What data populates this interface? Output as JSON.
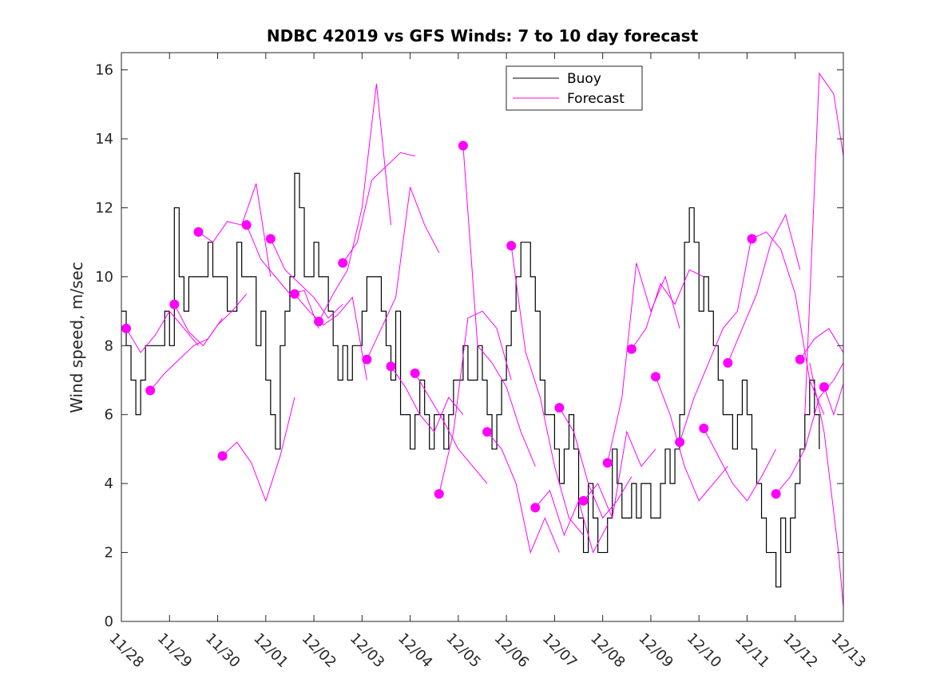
{
  "chart_data": {
    "type": "line",
    "title": "NDBC 42019 vs GFS Winds: 7 to 10 day forecast",
    "xlabel": "",
    "ylabel": "Wind speed, m/sec",
    "ylim": [
      0,
      16.5
    ],
    "xlim": [
      0,
      15
    ],
    "x_tick_labels": [
      "11/28",
      "11/29",
      "11/30",
      "12/01",
      "12/02",
      "12/03",
      "12/04",
      "12/05",
      "12/06",
      "12/07",
      "12/08",
      "12/09",
      "12/10",
      "12/11",
      "12/12",
      "12/13"
    ],
    "y_ticks": [
      0,
      2,
      4,
      6,
      8,
      10,
      12,
      14,
      16
    ],
    "y_tick_labels": [
      "0",
      "2",
      "4",
      "6",
      "8",
      "10",
      "12",
      "14",
      "16"
    ],
    "legend": {
      "location": "top-center",
      "entries": [
        "Buoy",
        "Forecast"
      ]
    },
    "colors": {
      "buoy": "#000000",
      "forecast": "#ff00ff"
    },
    "buoy": {
      "name": "Buoy",
      "x": [
        0,
        0.1,
        0.2,
        0.3,
        0.4,
        0.5,
        0.6,
        0.7,
        0.8,
        0.9,
        1.0,
        1.1,
        1.2,
        1.3,
        1.4,
        1.5,
        1.6,
        1.7,
        1.8,
        1.9,
        2.0,
        2.1,
        2.2,
        2.3,
        2.4,
        2.5,
        2.6,
        2.7,
        2.8,
        2.9,
        3.0,
        3.1,
        3.2,
        3.3,
        3.4,
        3.5,
        3.6,
        3.7,
        3.8,
        3.9,
        4.0,
        4.1,
        4.2,
        4.3,
        4.4,
        4.5,
        4.6,
        4.7,
        4.8,
        4.9,
        5.0,
        5.1,
        5.2,
        5.3,
        5.4,
        5.5,
        5.6,
        5.7,
        5.8,
        5.9,
        6.0,
        6.1,
        6.2,
        6.3,
        6.4,
        6.5,
        6.6,
        6.7,
        6.8,
        6.9,
        7.0,
        7.1,
        7.2,
        7.3,
        7.4,
        7.5,
        7.6,
        7.7,
        7.8,
        7.9,
        8.0,
        8.1,
        8.2,
        8.3,
        8.4,
        8.5,
        8.6,
        8.7,
        8.8,
        8.9,
        9.0,
        9.1,
        9.2,
        9.3,
        9.4,
        9.5,
        9.6,
        9.7,
        9.8,
        9.9,
        10.0,
        10.1,
        10.2,
        10.3,
        10.4,
        10.5,
        10.6,
        10.7,
        10.8,
        10.9,
        11.0,
        11.1,
        11.2,
        11.3,
        11.4,
        11.5,
        11.6,
        11.7,
        11.8,
        11.9,
        12.0,
        12.1,
        12.2,
        12.3,
        12.4,
        12.5,
        12.6,
        12.7,
        12.8,
        12.9,
        13.0,
        13.1,
        13.2,
        13.3,
        13.4,
        13.5,
        13.6,
        13.7,
        13.8,
        13.9,
        14.0,
        14.1,
        14.2,
        14.3,
        14.4,
        14.5
      ],
      "values": [
        9,
        8,
        7,
        6,
        7,
        8,
        8,
        8,
        8,
        9,
        8,
        12,
        10,
        9,
        10,
        10,
        10,
        10,
        11,
        10,
        10,
        10,
        9,
        9,
        11,
        10,
        10,
        10,
        8,
        9,
        7,
        6,
        5,
        8,
        9,
        10,
        13,
        12,
        10,
        10,
        11,
        10,
        10,
        9,
        8,
        7,
        8,
        7,
        8,
        8,
        9,
        10,
        10,
        10,
        9,
        8,
        7,
        9,
        6,
        6,
        5,
        6,
        7,
        6,
        5,
        6,
        6,
        5,
        6,
        7,
        7,
        8,
        7,
        7,
        8,
        7,
        6,
        5,
        6,
        7,
        8,
        9,
        10,
        11,
        11,
        10,
        9,
        7,
        6,
        6,
        5,
        4,
        5,
        6,
        5,
        3,
        2,
        4,
        3,
        2,
        2,
        3,
        5,
        4,
        3,
        3,
        4,
        3,
        4,
        4,
        3,
        3,
        4,
        5,
        4,
        5,
        6,
        11,
        12,
        11,
        9,
        10,
        9,
        8,
        7,
        6,
        6,
        5,
        6,
        7,
        6,
        5,
        4,
        3,
        2,
        2,
        1,
        3,
        2,
        3,
        4,
        5,
        6,
        7,
        6,
        5
      ]
    },
    "forecast": {
      "name": "Forecast",
      "series": [
        {
          "x": [
            0.1,
            0.4,
            0.7,
            1.0,
            1.3,
            1.6
          ],
          "values": [
            8.5,
            7.8,
            8.3,
            9.0,
            8.5,
            8.0
          ]
        },
        {
          "x": [
            0.6,
            0.9,
            1.2,
            1.5,
            1.8,
            2.1
          ],
          "values": [
            6.7,
            7.2,
            7.6,
            8.0,
            8.2,
            8.8
          ]
        },
        {
          "x": [
            1.1,
            1.4,
            1.7,
            2.0,
            2.3,
            2.6
          ],
          "values": [
            9.2,
            8.4,
            8.0,
            8.6,
            9.0,
            9.5
          ]
        },
        {
          "x": [
            1.6,
            1.9,
            2.2,
            2.5,
            2.8,
            3.1
          ],
          "values": [
            11.3,
            11.0,
            11.6,
            11.5,
            12.7,
            10.0
          ]
        },
        {
          "x": [
            2.1,
            2.4,
            2.7,
            3.0,
            3.3,
            3.6
          ],
          "values": [
            4.8,
            5.2,
            4.6,
            3.5,
            4.8,
            6.5
          ]
        },
        {
          "x": [
            2.6,
            2.9,
            3.2,
            3.5,
            3.8,
            4.1
          ],
          "values": [
            11.5,
            10.5,
            10.0,
            9.5,
            9.6,
            8.5
          ]
        },
        {
          "x": [
            3.1,
            3.4,
            3.7,
            4.0,
            4.3,
            4.6
          ],
          "values": [
            11.1,
            10.2,
            9.8,
            9.4,
            8.8,
            9.2
          ]
        },
        {
          "x": [
            3.6,
            3.9,
            4.2,
            4.5,
            4.8,
            5.1
          ],
          "values": [
            9.5,
            9.0,
            8.6,
            8.9,
            9.4,
            7.0
          ]
        },
        {
          "x": [
            4.1,
            4.4,
            4.7,
            5.0,
            5.3,
            5.6
          ],
          "values": [
            8.7,
            9.5,
            10.2,
            12.0,
            15.6,
            11.5
          ]
        },
        {
          "x": [
            4.6,
            4.9,
            5.2,
            5.5,
            5.8,
            6.1
          ],
          "values": [
            10.4,
            11.0,
            12.8,
            13.2,
            13.6,
            13.5
          ]
        },
        {
          "x": [
            5.1,
            5.4,
            5.7,
            6.0,
            6.3,
            6.6
          ],
          "values": [
            7.6,
            8.5,
            9.4,
            12.6,
            11.5,
            10.7
          ]
        },
        {
          "x": [
            5.6,
            5.9,
            6.2,
            6.5,
            6.8,
            7.1
          ],
          "values": [
            7.4,
            6.8,
            6.0,
            5.5,
            6.5,
            6.0
          ]
        },
        {
          "x": [
            6.1,
            6.4,
            6.7,
            7.0,
            7.3,
            7.6
          ],
          "values": [
            7.2,
            6.5,
            5.8,
            5.0,
            4.5,
            4.0
          ]
        },
        {
          "x": [
            6.6,
            6.9,
            7.2,
            7.5,
            7.8,
            8.1
          ],
          "values": [
            3.7,
            5.5,
            8.8,
            9.0,
            8.5,
            7.0
          ]
        },
        {
          "x": [
            7.1,
            7.4,
            7.7,
            8.0,
            8.3,
            8.6
          ],
          "values": [
            13.8,
            8.0,
            7.5,
            6.8,
            5.5,
            4.5
          ]
        },
        {
          "x": [
            7.6,
            7.9,
            8.2,
            8.5,
            8.8,
            9.1
          ],
          "values": [
            5.5,
            5.0,
            4.0,
            2.0,
            3.0,
            2.0
          ]
        },
        {
          "x": [
            8.1,
            8.4,
            8.7,
            9.0,
            9.3,
            9.6
          ],
          "values": [
            10.9,
            7.8,
            6.5,
            4.5,
            3.0,
            2.5
          ]
        },
        {
          "x": [
            8.6,
            8.9,
            9.2,
            9.5,
            9.8,
            10.1
          ],
          "values": [
            3.3,
            3.8,
            2.5,
            3.5,
            2.0,
            2.8
          ]
        },
        {
          "x": [
            9.1,
            9.4,
            9.7,
            10.0,
            10.3,
            10.6
          ],
          "values": [
            6.2,
            5.5,
            4.0,
            3.0,
            3.5,
            4.2
          ]
        },
        {
          "x": [
            9.6,
            9.9,
            10.2,
            10.5,
            10.8,
            11.1
          ],
          "values": [
            3.5,
            4.0,
            3.0,
            5.5,
            4.5,
            5.0
          ]
        },
        {
          "x": [
            10.1,
            10.4,
            10.7,
            11.0,
            11.3,
            11.6
          ],
          "values": [
            4.6,
            6.5,
            10.4,
            9.0,
            10.0,
            8.5
          ]
        },
        {
          "x": [
            10.6,
            10.9,
            11.2,
            11.5,
            11.8,
            12.1
          ],
          "values": [
            7.9,
            8.5,
            9.8,
            9.2,
            10.2,
            10.0
          ]
        },
        {
          "x": [
            11.1,
            11.4,
            11.7,
            12.0,
            12.3,
            12.6
          ],
          "values": [
            7.1,
            6.0,
            4.5,
            3.5,
            4.0,
            4.5
          ]
        },
        {
          "x": [
            11.6,
            11.9,
            12.2,
            12.5,
            12.8,
            13.1
          ],
          "values": [
            5.2,
            6.5,
            7.5,
            8.5,
            9.0,
            11.2
          ]
        },
        {
          "x": [
            12.1,
            12.4,
            12.7,
            13.0,
            13.3,
            13.6
          ],
          "values": [
            5.6,
            4.8,
            4.0,
            3.5,
            4.2,
            5.0
          ]
        },
        {
          "x": [
            12.6,
            12.9,
            13.2,
            13.5,
            13.8,
            14.1
          ],
          "values": [
            7.5,
            8.5,
            9.5,
            11.0,
            11.8,
            10.2
          ]
        },
        {
          "x": [
            13.1,
            13.4,
            13.7,
            14.0,
            14.3,
            14.6
          ],
          "values": [
            11.1,
            11.3,
            10.8,
            9.5,
            7.0,
            6.0
          ]
        },
        {
          "x": [
            13.6,
            13.9,
            14.2,
            14.5,
            14.8,
            15.0
          ],
          "values": [
            3.7,
            4.2,
            5.0,
            6.5,
            7.0,
            7.5
          ]
        },
        {
          "x": [
            14.1,
            14.4,
            14.7,
            15.0
          ],
          "values": [
            7.6,
            8.2,
            8.5,
            7.8
          ]
        },
        {
          "x": [
            14.6,
            14.8,
            15.0
          ],
          "values": [
            6.8,
            6.0,
            6.9
          ]
        },
        {
          "x": [
            14.2,
            14.5,
            14.8,
            15.0
          ],
          "values": [
            6.0,
            15.9,
            15.3,
            13.5
          ]
        },
        {
          "x": [
            14.3,
            14.6,
            14.9,
            15.0
          ],
          "values": [
            7.5,
            5.5,
            2.0,
            0.4
          ]
        }
      ],
      "markers_x": [
        0.1,
        0.6,
        1.1,
        1.6,
        2.1,
        2.6,
        3.1,
        3.6,
        4.1,
        4.6,
        5.1,
        5.6,
        6.1,
        6.6,
        7.1,
        7.6,
        8.1,
        8.6,
        9.1,
        9.6,
        10.1,
        10.6,
        11.1,
        11.6,
        12.1,
        12.6,
        13.1,
        13.6,
        14.1,
        14.6
      ],
      "markers_values": [
        8.5,
        6.7,
        9.2,
        11.3,
        4.8,
        11.5,
        11.1,
        9.5,
        8.7,
        10.4,
        7.6,
        7.4,
        7.2,
        3.7,
        13.8,
        5.5,
        10.9,
        3.3,
        6.2,
        3.5,
        4.6,
        7.9,
        7.1,
        5.2,
        5.6,
        7.5,
        11.1,
        3.7,
        7.6,
        6.8
      ]
    }
  }
}
